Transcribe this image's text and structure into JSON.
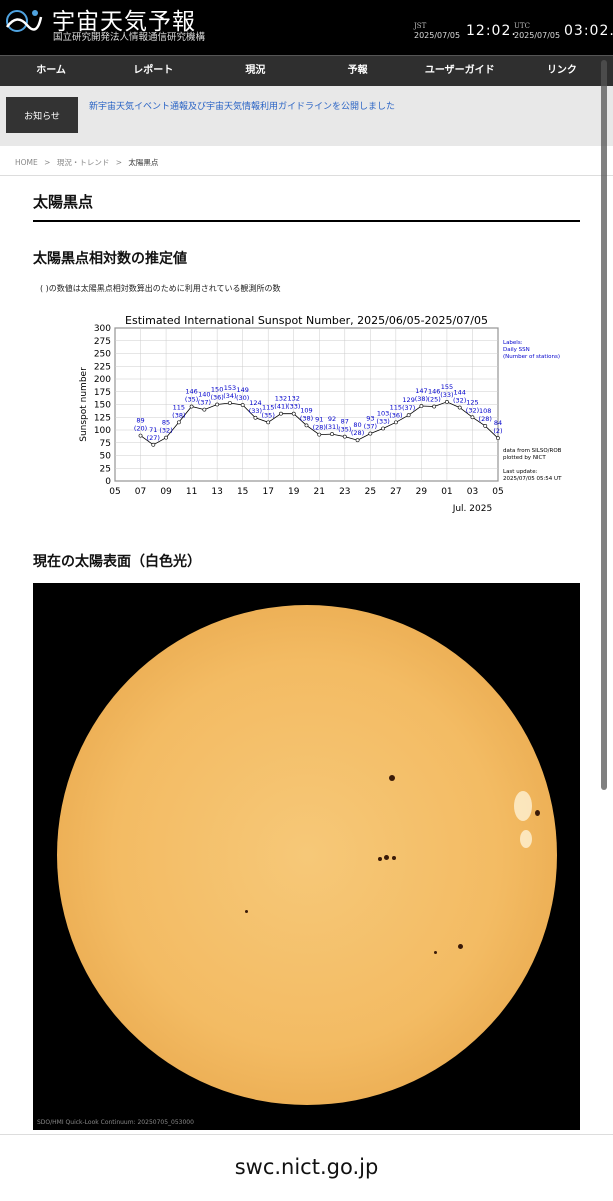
{
  "site": {
    "title": "宇宙天気予報",
    "subtitle": "国立研究開発法人情報通信研究機構"
  },
  "clock": {
    "jst_label": "JST",
    "jst_date": "2025/07/05",
    "jst_time": "12:02.",
    "utc_label": "UTC",
    "utc_date": "2025/07/05",
    "utc_time": "03:02."
  },
  "nav": [
    "ホーム",
    "レポート",
    "現況",
    "予報",
    "ユーザーガイド",
    "リンク"
  ],
  "notice": {
    "button": "お知らせ",
    "link": "新宇宙天気イベント通報及び宇宙天気情報利用ガイドラインを公開しました"
  },
  "breadcrumb": [
    "HOME",
    ">",
    "現況・トレンド",
    ">",
    "太陽黒点"
  ],
  "page_title": "太陽黒点",
  "section1_title": "太陽黒点相対数の推定値",
  "section1_note": "( )の数値は太陽黒点相対数算出のために利用されている観測所の数",
  "section2_title": "現在の太陽表面（白色光）",
  "sun_caption": "SDO/HMI  Quick-Look  Continuum:  20250705_053000",
  "footer_url": "swc.nict.go.jp",
  "colors": {
    "header": "#000000",
    "nav": "#2f2f2f",
    "link": "#2a64c5",
    "chart_series": "#0000cc"
  },
  "chart_data": {
    "type": "line",
    "title": "Estimated International Sunspot Number, 2025/06/05-2025/07/05",
    "ylabel": "Sunspot number",
    "xlabel": "Jul. 2025",
    "ylim": [
      0,
      300
    ],
    "yticks": [
      0,
      25,
      50,
      75,
      100,
      125,
      150,
      175,
      200,
      225,
      250,
      275,
      300
    ],
    "xticks": [
      "05",
      "07",
      "09",
      "11",
      "13",
      "15",
      "17",
      "19",
      "21",
      "23",
      "25",
      "27",
      "29",
      "01",
      "03",
      "05"
    ],
    "grid": true,
    "legend": "right",
    "side_labels": [
      "Labels:",
      "Daily SSN",
      "(Number of stations)"
    ],
    "side_notes": [
      "data from SILSO/ROB",
      "plotted by NICT",
      "",
      "Last update:",
      "2025/07/05 05:54 UT"
    ],
    "x": [
      "2025-06-07",
      "2025-06-08",
      "2025-06-09",
      "2025-06-10",
      "2025-06-11",
      "2025-06-12",
      "2025-06-13",
      "2025-06-14",
      "2025-06-15",
      "2025-06-16",
      "2025-06-17",
      "2025-06-18",
      "2025-06-19",
      "2025-06-20",
      "2025-06-21",
      "2025-06-22",
      "2025-06-23",
      "2025-06-24",
      "2025-06-25",
      "2025-06-26",
      "2025-06-27",
      "2025-06-28",
      "2025-06-29",
      "2025-06-30",
      "2025-07-01",
      "2025-07-02",
      "2025-07-03",
      "2025-07-04",
      "2025-07-05"
    ],
    "series": [
      {
        "values": [
          89,
          71,
          85,
          115,
          146,
          140,
          150,
          153,
          149,
          124,
          115,
          132,
          132,
          109,
          91,
          92,
          87,
          80,
          93,
          103,
          115,
          129,
          147,
          146,
          155,
          144,
          125,
          108,
          84
        ],
        "stations": [
          20,
          27,
          32,
          38,
          35,
          37,
          36,
          34,
          30,
          33,
          35,
          41,
          33,
          38,
          28,
          31,
          35,
          28,
          37,
          33,
          36,
          37,
          38,
          25,
          33,
          32,
          32,
          28,
          2
        ]
      }
    ]
  }
}
